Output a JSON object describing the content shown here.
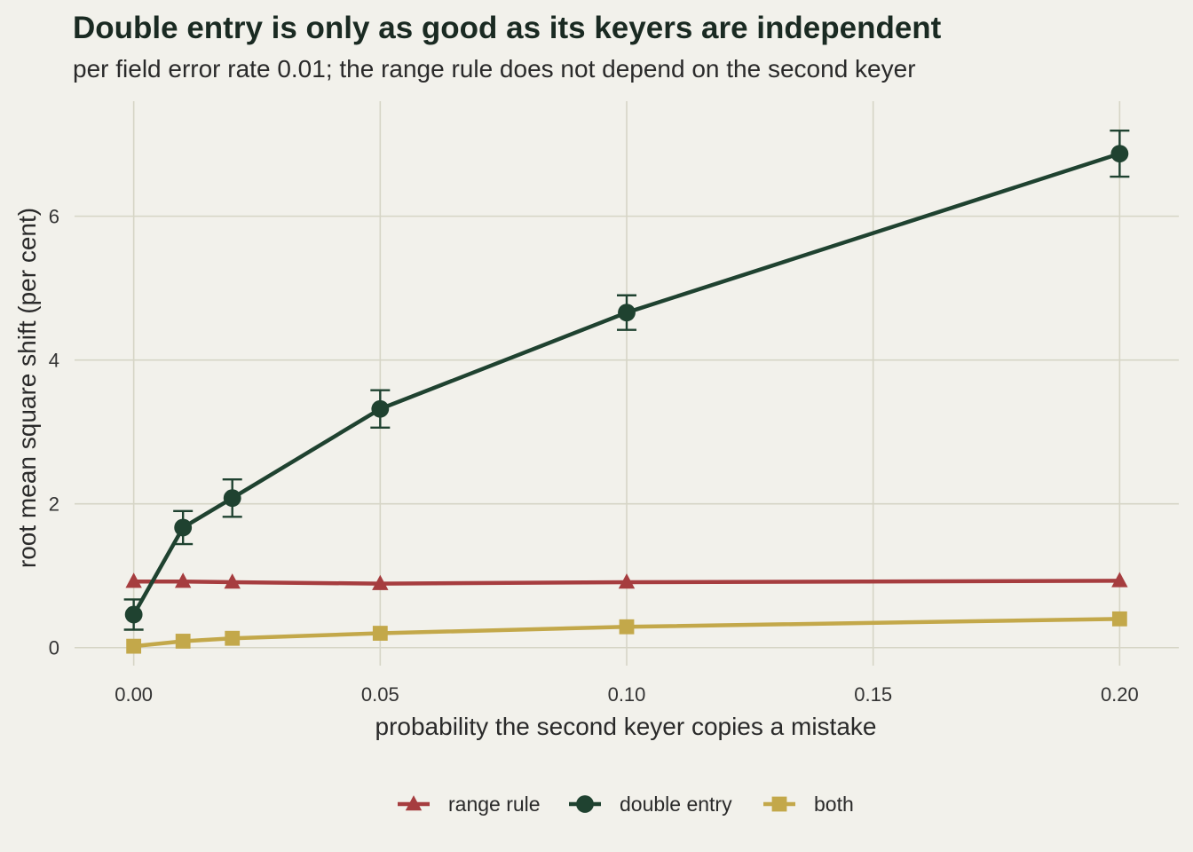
{
  "chart_data": {
    "type": "line",
    "title": "Double entry is only as good as its keyers are independent",
    "subtitle": "per field error rate 0.01; the range rule does not depend on the second keyer",
    "xlabel": "probability the second keyer copies a mistake",
    "ylabel": "root mean square shift (per cent)",
    "x": [
      0.0,
      0.01,
      0.02,
      0.05,
      0.1,
      0.2
    ],
    "xlim": [
      -0.012,
      0.212
    ],
    "ylim": [
      -0.25,
      7.6
    ],
    "x_ticks": [
      0.0,
      0.05,
      0.1,
      0.15,
      0.2
    ],
    "x_tick_labels": [
      "0.00",
      "0.05",
      "0.10",
      "0.15",
      "0.20"
    ],
    "y_ticks": [
      0,
      2,
      4,
      6
    ],
    "y_tick_labels": [
      "0",
      "2",
      "4",
      "6"
    ],
    "grid": true,
    "legend_position": "bottom",
    "series": [
      {
        "name": "range rule",
        "marker": "triangle",
        "color": "#a63d3f",
        "values": [
          0.92,
          0.92,
          0.91,
          0.89,
          0.91,
          0.93
        ]
      },
      {
        "name": "double entry",
        "marker": "circle",
        "color": "#1f4230",
        "values": [
          0.46,
          1.67,
          2.08,
          3.32,
          4.66,
          6.87
        ],
        "error_low": [
          0.25,
          1.44,
          1.82,
          3.06,
          4.42,
          6.55
        ],
        "error_high": [
          0.67,
          1.9,
          2.34,
          3.58,
          4.9,
          7.19
        ]
      },
      {
        "name": "both",
        "marker": "square",
        "color": "#c3a84a",
        "values": [
          0.02,
          0.09,
          0.13,
          0.2,
          0.29,
          0.4
        ]
      }
    ]
  },
  "colors": {
    "background": "#f2f1eb",
    "grid": "#d6d5c6"
  }
}
